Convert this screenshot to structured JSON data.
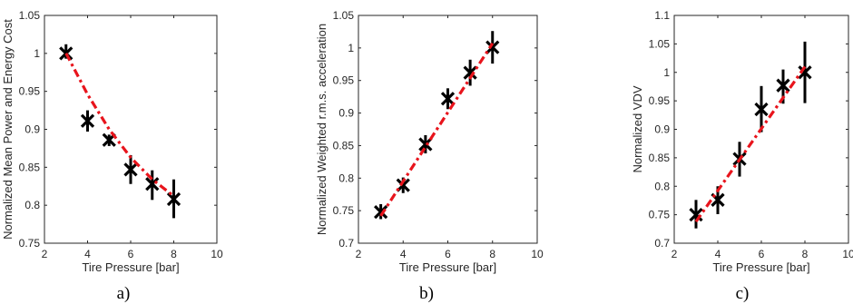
{
  "chart_data": [
    {
      "type": "scatter",
      "panel_label": "a)",
      "xlabel": "Tire Pressure [bar]",
      "ylabel": "Normalized Mean Power and Energy Cost",
      "xlim": [
        2,
        10
      ],
      "ylim": [
        0.75,
        1.05
      ],
      "xticks": [
        2,
        4,
        6,
        8,
        10
      ],
      "yticks": [
        0.75,
        0.8,
        0.85,
        0.9,
        0.95,
        1,
        1.05
      ],
      "ytick_labels": [
        "0.75",
        "0.8",
        "0.85",
        "0.9",
        "0.95",
        "1",
        "1.05"
      ],
      "grid": false,
      "points": [
        {
          "x": 3,
          "y": 1.0,
          "lo": 0.993,
          "hi": 1.012
        },
        {
          "x": 4,
          "y": 0.911,
          "lo": 0.897,
          "hi": 0.925
        },
        {
          "x": 5,
          "y": 0.886,
          "lo": 0.878,
          "hi": 0.893
        },
        {
          "x": 6,
          "y": 0.847,
          "lo": 0.828,
          "hi": 0.866
        },
        {
          "x": 7,
          "y": 0.828,
          "lo": 0.807,
          "hi": 0.846
        },
        {
          "x": 8,
          "y": 0.808,
          "lo": 0.783,
          "hi": 0.834
        }
      ],
      "fit": {
        "x": [
          3,
          4,
          5,
          6,
          7,
          8
        ],
        "y": [
          1.0,
          0.946,
          0.9,
          0.863,
          0.834,
          0.812
        ]
      },
      "colors": {
        "markers": "#000000",
        "fit": "#e8141c"
      }
    },
    {
      "type": "scatter",
      "panel_label": "b)",
      "xlabel": "Tire Pressure [bar]",
      "ylabel": "Normalized Weighted r.m.s. acceleration",
      "xlim": [
        2,
        10
      ],
      "ylim": [
        0.7,
        1.05
      ],
      "xticks": [
        2,
        4,
        6,
        8,
        10
      ],
      "yticks": [
        0.7,
        0.75,
        0.8,
        0.85,
        0.9,
        0.95,
        1,
        1.05
      ],
      "ytick_labels": [
        "0.7",
        "0.75",
        "0.8",
        "0.85",
        "0.9",
        "0.95",
        "1",
        "1.05"
      ],
      "grid": false,
      "points": [
        {
          "x": 3,
          "y": 0.748,
          "lo": 0.737,
          "hi": 0.76
        },
        {
          "x": 4,
          "y": 0.789,
          "lo": 0.777,
          "hi": 0.801
        },
        {
          "x": 5,
          "y": 0.852,
          "lo": 0.838,
          "hi": 0.866
        },
        {
          "x": 6,
          "y": 0.922,
          "lo": 0.906,
          "hi": 0.938
        },
        {
          "x": 7,
          "y": 0.962,
          "lo": 0.942,
          "hi": 0.982
        },
        {
          "x": 8,
          "y": 1.001,
          "lo": 0.976,
          "hi": 1.026
        }
      ],
      "fit": {
        "x": [
          3,
          8
        ],
        "y": [
          0.742,
          1.007
        ]
      },
      "colors": {
        "markers": "#000000",
        "fit": "#e8141c"
      }
    },
    {
      "type": "scatter",
      "panel_label": "c)",
      "xlabel": "Tire Pressure [bar]",
      "ylabel": "Normalized VDV",
      "xlim": [
        2,
        10
      ],
      "ylim": [
        0.7,
        1.1
      ],
      "xticks": [
        2,
        4,
        6,
        8,
        10
      ],
      "yticks": [
        0.7,
        0.75,
        0.8,
        0.85,
        0.9,
        0.95,
        1,
        1.05,
        1.1
      ],
      "ytick_labels": [
        "0.7",
        "0.75",
        "0.8",
        "0.85",
        "0.9",
        "0.95",
        "1",
        "1.05",
        "1.1"
      ],
      "grid": false,
      "points": [
        {
          "x": 3,
          "y": 0.75,
          "lo": 0.726,
          "hi": 0.776
        },
        {
          "x": 4,
          "y": 0.776,
          "lo": 0.751,
          "hi": 0.8
        },
        {
          "x": 5,
          "y": 0.848,
          "lo": 0.817,
          "hi": 0.878
        },
        {
          "x": 6,
          "y": 0.935,
          "lo": 0.895,
          "hi": 0.976
        },
        {
          "x": 7,
          "y": 0.977,
          "lo": 0.945,
          "hi": 1.005
        },
        {
          "x": 8,
          "y": 1.0,
          "lo": 0.946,
          "hi": 1.054
        }
      ],
      "fit": {
        "x": [
          3,
          8
        ],
        "y": [
          0.738,
          1.01
        ]
      },
      "colors": {
        "markers": "#000000",
        "fit": "#e8141c"
      }
    }
  ]
}
